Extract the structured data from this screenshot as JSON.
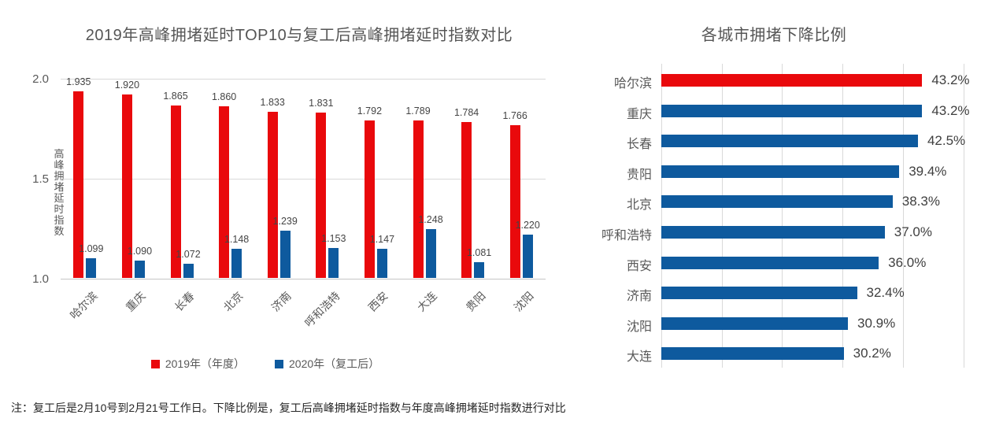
{
  "note": "注：复工后是2月10号到2月21号工作日。下降比例是，复工后高峰拥堵延时指数与年度高峰拥堵延时指数进行对比",
  "colors": {
    "red": "#E9090C",
    "blue": "#0E5A9E",
    "gridline": "#D9D9D9",
    "axis": "#C6C6C6",
    "title_text": "#555555",
    "tick_text": "#595959",
    "data_label_text": "#444444"
  },
  "chart_data": [
    {
      "type": "bar",
      "title": "2019年高峰拥堵延时TOP10与复工后高峰拥堵延时指数对比",
      "xlabel": "",
      "ylabel": "高峰拥堵延时指数",
      "ylim": [
        1.0,
        2.0
      ],
      "yticks": [
        "2.0",
        "1.5",
        "1.0"
      ],
      "grid": "horizontal",
      "legend_position": "bottom",
      "categories": [
        "哈尔滨",
        "重庆",
        "长春",
        "北京",
        "济南",
        "呼和浩特",
        "西安",
        "大连",
        "贵阳",
        "沈阳"
      ],
      "series": [
        {
          "name": "2019年（年度）",
          "color": "#E9090C",
          "values": [
            1.935,
            1.92,
            1.865,
            1.86,
            1.833,
            1.831,
            1.792,
            1.789,
            1.784,
            1.766
          ],
          "labels": [
            "1.935",
            "1.920",
            "1.865",
            "1.860",
            "1.833",
            "1.831",
            "1.792",
            "1.789",
            "1.784",
            "1.766"
          ]
        },
        {
          "name": "2020年（复工后）",
          "color": "#0E5A9E",
          "values": [
            1.099,
            1.09,
            1.072,
            1.148,
            1.239,
            1.153,
            1.147,
            1.248,
            1.081,
            1.22
          ],
          "labels": [
            "1.099",
            "1.090",
            "1.072",
            "1.148",
            "1.239",
            "1.153",
            "1.147",
            "1.248",
            "1.081",
            "1.220"
          ]
        }
      ]
    },
    {
      "type": "bar",
      "orientation": "horizontal",
      "title": "各城市拥堵下降比例",
      "xlim": [
        0,
        50
      ],
      "grid": "vertical",
      "categories": [
        "哈尔滨",
        "重庆",
        "长春",
        "贵阳",
        "北京",
        "呼和浩特",
        "西安",
        "济南",
        "沈阳",
        "大连"
      ],
      "values": [
        43.2,
        43.2,
        42.5,
        39.4,
        38.3,
        37.0,
        36.0,
        32.4,
        30.9,
        30.2
      ],
      "labels": [
        "43.2%",
        "43.2%",
        "42.5%",
        "39.4%",
        "38.3%",
        "37.0%",
        "36.0%",
        "32.4%",
        "30.9%",
        "30.2%"
      ],
      "highlight_index": 0,
      "highlight_color": "#E9090C",
      "bar_color": "#0E5A9E"
    }
  ]
}
